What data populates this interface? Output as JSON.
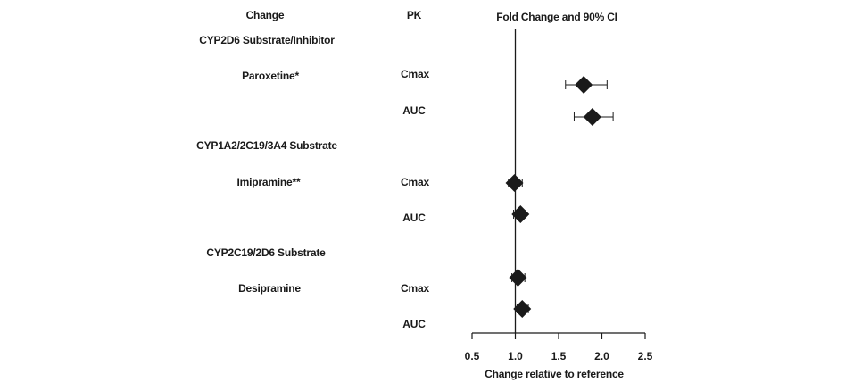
{
  "headers": {
    "change": "Change",
    "pk": "PK",
    "fold": "Fold Change and 90% CI"
  },
  "groups": [
    {
      "label": "CYP2D6 Substrate/Inhibitor",
      "drug": "Paroxetine*",
      "rows": [
        {
          "pk": "Cmax",
          "estimate": 1.79,
          "ci": [
            1.58,
            2.06
          ]
        },
        {
          "pk": "AUC",
          "estimate": 1.89,
          "ci": [
            1.68,
            2.13
          ]
        }
      ]
    },
    {
      "label": "CYP1A2/2C19/3A4 Substrate",
      "drug": "Imipramine**",
      "rows": [
        {
          "pk": "Cmax",
          "estimate": 0.99,
          "ci": [
            0.92,
            1.08
          ]
        },
        {
          "pk": "AUC",
          "estimate": 1.06,
          "ci": [
            0.98,
            1.11
          ]
        }
      ]
    },
    {
      "label": "CYP2C19/2D6 Substrate",
      "drug": "Desipramine",
      "rows": [
        {
          "pk": "Cmax",
          "estimate": 1.03,
          "ci": [
            0.96,
            1.11
          ]
        },
        {
          "pk": "AUC",
          "estimate": 1.08,
          "ci": [
            1.02,
            1.15
          ]
        }
      ]
    }
  ],
  "chart_data": {
    "type": "scatter",
    "title": "Fold Change and 90% CI",
    "xlabel": "Change relative to reference",
    "ylabel": "",
    "xlim": [
      0.5,
      2.5
    ],
    "xticks": [
      "0.5",
      "1.0",
      "1.5",
      "2.0",
      "2.5"
    ],
    "reference_line": 1.0,
    "grid": false,
    "points": [
      {
        "drug": "Paroxetine*",
        "pk": "Cmax",
        "estimate": 1.79,
        "ci_low": 1.58,
        "ci_high": 2.06
      },
      {
        "drug": "Paroxetine*",
        "pk": "AUC",
        "estimate": 1.89,
        "ci_low": 1.68,
        "ci_high": 2.13
      },
      {
        "drug": "Imipramine**",
        "pk": "Cmax",
        "estimate": 0.99,
        "ci_low": 0.92,
        "ci_high": 1.08
      },
      {
        "drug": "Imipramine**",
        "pk": "AUC",
        "estimate": 1.06,
        "ci_low": 0.98,
        "ci_high": 1.11
      },
      {
        "drug": "Desipramine",
        "pk": "Cmax",
        "estimate": 1.03,
        "ci_low": 0.96,
        "ci_high": 1.11
      },
      {
        "drug": "Desipramine",
        "pk": "AUC",
        "estimate": 1.08,
        "ci_low": 1.02,
        "ci_high": 1.15
      }
    ]
  }
}
